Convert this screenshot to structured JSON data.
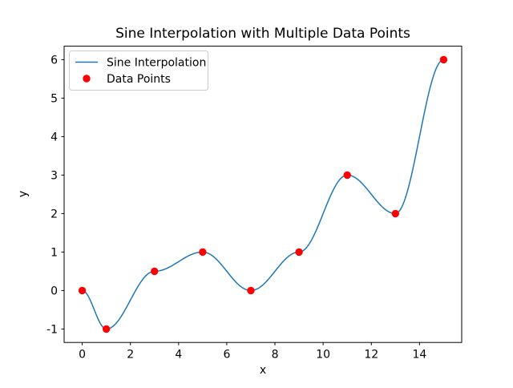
{
  "figure": {
    "background": "#ffffff",
    "frame_color": "#000000"
  },
  "chart_data": {
    "type": "line",
    "title": "Sine Interpolation with Multiple Data Points",
    "xlabel": "x",
    "ylabel": "y",
    "grid": false,
    "legend_position": "upper left",
    "series": [
      {
        "name": "Sine Interpolation",
        "type": "line",
        "color": "#1f77b4",
        "interpolation": "cosine-easing",
        "linewidth": 1.5
      },
      {
        "name": "Data Points",
        "type": "scatter",
        "color": "#ff0000",
        "marker": "circle",
        "marker_radius": 4.7
      }
    ],
    "x": [
      0,
      1,
      3,
      5,
      7,
      9,
      11,
      13,
      15
    ],
    "y": [
      0,
      -1,
      0.5,
      1,
      0,
      1,
      3,
      2,
      6
    ],
    "xticks": [
      0,
      2,
      4,
      6,
      8,
      10,
      12,
      14
    ],
    "yticks": [
      -1,
      0,
      1,
      2,
      3,
      4,
      5,
      6
    ],
    "xlim": [
      -0.75,
      15.75
    ],
    "ylim": [
      -1.35,
      6.35
    ]
  }
}
